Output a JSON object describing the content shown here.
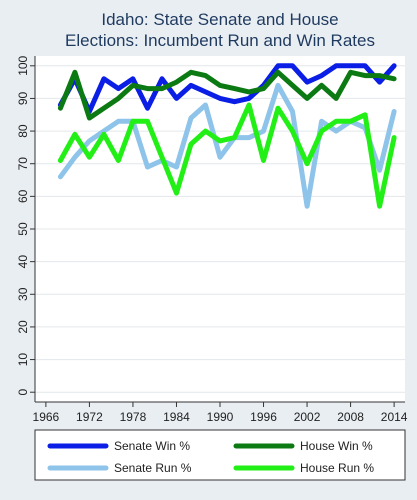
{
  "chart_data": {
    "type": "line",
    "title_lines": [
      "Idaho: State Senate and House",
      "Elections: Incumbent Run and Win Rates"
    ],
    "xlabel": "",
    "ylabel": "",
    "x_ticks": [
      1966,
      1972,
      1978,
      1984,
      1990,
      1996,
      2002,
      2008,
      2014
    ],
    "y_ticks": [
      0,
      10,
      20,
      30,
      40,
      50,
      60,
      70,
      80,
      90,
      100
    ],
    "xlim": [
      1964.5,
      2015.5
    ],
    "ylim": [
      -3,
      103
    ],
    "grid": true,
    "legend_position": "bottom",
    "x": [
      1968,
      1970,
      1972,
      1974,
      1976,
      1978,
      1980,
      1982,
      1984,
      1986,
      1988,
      1990,
      1992,
      1994,
      1996,
      1998,
      2000,
      2002,
      2004,
      2006,
      2008,
      2010,
      2012,
      2014
    ],
    "series": [
      {
        "name": "Senate Win %",
        "color": "#0a1ee6",
        "width": 5,
        "values": [
          88,
          96,
          86,
          96,
          93,
          96,
          87,
          96,
          90,
          94,
          92,
          90,
          89,
          90,
          94,
          100,
          100,
          95,
          97,
          100,
          100,
          100,
          95,
          100
        ]
      },
      {
        "name": "House Win %",
        "color": "#0b7a12",
        "width": 5,
        "values": [
          87,
          98,
          84,
          87,
          90,
          94,
          93,
          93,
          95,
          98,
          97,
          94,
          93,
          92,
          93,
          98,
          94,
          90,
          94,
          90,
          98,
          97,
          97,
          96
        ]
      },
      {
        "name": "Senate Run %",
        "color": "#8ec3ea",
        "width": 5,
        "values": [
          66,
          72,
          77,
          80,
          83,
          83,
          69,
          71,
          69,
          84,
          88,
          72,
          78,
          78,
          80,
          94,
          86,
          57,
          83,
          80,
          83,
          81,
          68,
          86
        ]
      },
      {
        "name": "House Run %",
        "color": "#22ef15",
        "width": 5,
        "values": [
          71,
          79,
          72,
          79,
          71,
          83,
          83,
          72,
          61,
          76,
          80,
          77,
          78,
          88,
          71,
          87,
          80,
          70,
          80,
          83,
          83,
          85,
          57,
          78
        ]
      }
    ]
  }
}
